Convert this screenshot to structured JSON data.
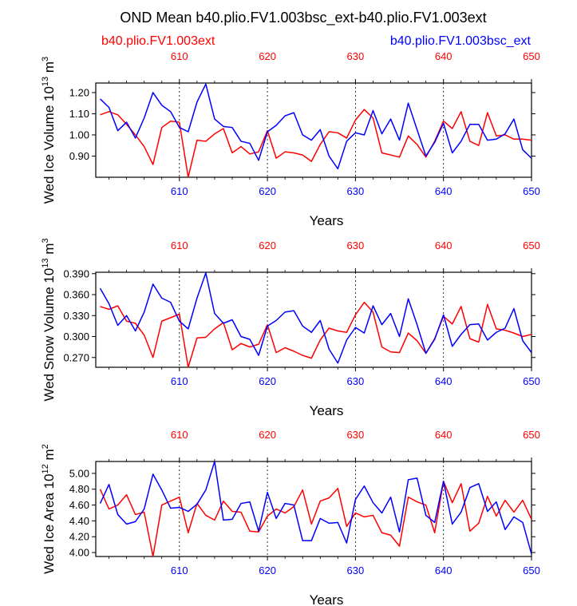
{
  "title": "OND Mean b40.plio.FV1.003bsc_ext-b40.plio.FV1.003ext",
  "legend": {
    "left": "b40.plio.FV1.003ext",
    "right": "b40.plio.FV1.003bsc_ext"
  },
  "colors": {
    "red": "#ff0000",
    "blue": "#0000ff"
  },
  "chart_data": [
    {
      "type": "line",
      "ylabel": "Wed Ice Volume 10^13 m^3",
      "ylabel_base": "Wed Ice Volume 10",
      "ylabel_exp": "13",
      "ylabel_unit": "m",
      "ylabel_unit_exp": "3",
      "xlabel": "Years",
      "xlim": [
        600.5,
        650
      ],
      "ylim": [
        0.8,
        1.245
      ],
      "yticks": [
        "0.90",
        "1.00",
        "1.10",
        "1.20"
      ],
      "xticks": [
        "610",
        "620",
        "630",
        "640",
        "650"
      ],
      "x_start": 601,
      "series": [
        {
          "name": "b40.plio.FV1.003ext",
          "color": "#ff0000",
          "values": [
            1.095,
            1.11,
            1.095,
            1.05,
            1.0,
            0.945,
            0.86,
            1.035,
            1.065,
            1.06,
            0.8,
            0.975,
            0.97,
            1.005,
            1.03,
            0.915,
            0.945,
            0.91,
            0.92,
            1.02,
            0.89,
            0.92,
            0.915,
            0.905,
            0.875,
            0.955,
            1.015,
            1.01,
            0.985,
            1.07,
            1.12,
            1.08,
            0.915,
            0.905,
            0.895,
            0.995,
            0.955,
            0.895,
            0.97,
            1.065,
            1.03,
            1.11,
            0.97,
            0.95,
            1.105,
            0.995,
            1.0,
            0.98,
            0.98,
            0.975
          ]
        },
        {
          "name": "b40.plio.FV1.003bsc_ext",
          "color": "#0000ff",
          "values": [
            1.17,
            1.13,
            1.02,
            1.06,
            0.985,
            1.08,
            1.2,
            1.14,
            1.11,
            1.035,
            1.015,
            1.155,
            1.24,
            1.075,
            1.04,
            1.035,
            0.97,
            0.96,
            0.88,
            1.015,
            1.045,
            1.09,
            1.105,
            1.0,
            0.975,
            1.025,
            0.9,
            0.84,
            0.97,
            1.01,
            1.0,
            1.115,
            1.005,
            1.075,
            0.975,
            1.15,
            1.025,
            0.9,
            0.965,
            1.055,
            0.915,
            0.97,
            1.05,
            1.05,
            0.975,
            0.98,
            1.005,
            1.075,
            0.93,
            0.89
          ]
        }
      ]
    },
    {
      "type": "line",
      "ylabel": "Wed Snow Volume 10^13 m^3",
      "ylabel_base": "Wed Snow Volume 10",
      "ylabel_exp": "13",
      "ylabel_unit": "m",
      "ylabel_unit_exp": "3",
      "xlabel": "Years",
      "xlim": [
        600.5,
        650
      ],
      "ylim": [
        0.256,
        0.392
      ],
      "yticks": [
        "0.270",
        "0.300",
        "0.330",
        "0.360",
        "0.390"
      ],
      "xticks": [
        "610",
        "620",
        "630",
        "640",
        "650"
      ],
      "x_start": 601,
      "series": [
        {
          "name": "b40.plio.FV1.003ext",
          "color": "#ff0000",
          "values": [
            0.343,
            0.339,
            0.344,
            0.322,
            0.319,
            0.302,
            0.27,
            0.322,
            0.327,
            0.332,
            0.256,
            0.298,
            0.299,
            0.311,
            0.32,
            0.281,
            0.29,
            0.285,
            0.289,
            0.317,
            0.277,
            0.284,
            0.279,
            0.273,
            0.269,
            0.295,
            0.312,
            0.308,
            0.306,
            0.331,
            0.349,
            0.335,
            0.285,
            0.278,
            0.277,
            0.305,
            0.294,
            0.276,
            0.297,
            0.329,
            0.318,
            0.343,
            0.297,
            0.292,
            0.346,
            0.311,
            0.309,
            0.305,
            0.3,
            0.303
          ]
        },
        {
          "name": "b40.plio.FV1.003bsc_ext",
          "color": "#0000ff",
          "values": [
            0.369,
            0.347,
            0.316,
            0.33,
            0.308,
            0.335,
            0.375,
            0.355,
            0.349,
            0.322,
            0.311,
            0.355,
            0.391,
            0.333,
            0.319,
            0.324,
            0.3,
            0.296,
            0.273,
            0.315,
            0.323,
            0.335,
            0.337,
            0.315,
            0.306,
            0.323,
            0.282,
            0.262,
            0.295,
            0.313,
            0.305,
            0.344,
            0.317,
            0.333,
            0.3,
            0.354,
            0.317,
            0.276,
            0.296,
            0.331,
            0.286,
            0.303,
            0.317,
            0.318,
            0.295,
            0.306,
            0.312,
            0.34,
            0.294,
            0.277
          ]
        }
      ]
    },
    {
      "type": "line",
      "ylabel": "Wed Ice Area 10^12 m^2",
      "ylabel_base": "Wed Ice Area 10",
      "ylabel_exp": "12",
      "ylabel_unit": "m",
      "ylabel_unit_exp": "2",
      "xlabel": "Years",
      "xlim": [
        600.5,
        650
      ],
      "ylim": [
        3.95,
        5.15
      ],
      "yticks": [
        "4.00",
        "4.20",
        "4.40",
        "4.60",
        "4.80",
        "5.00"
      ],
      "xticks": [
        "610",
        "620",
        "630",
        "640",
        "650"
      ],
      "x_start": 601,
      "series": [
        {
          "name": "b40.plio.FV1.003ext",
          "color": "#ff0000",
          "values": [
            4.8,
            4.55,
            4.6,
            4.73,
            4.48,
            4.51,
            3.95,
            4.6,
            4.65,
            4.7,
            4.25,
            4.62,
            4.47,
            4.41,
            4.65,
            4.52,
            4.51,
            4.27,
            4.26,
            4.46,
            4.55,
            4.5,
            4.58,
            4.79,
            4.36,
            4.65,
            4.69,
            4.81,
            4.33,
            4.5,
            4.45,
            4.47,
            4.25,
            4.22,
            4.08,
            4.7,
            4.64,
            4.6,
            4.25,
            4.9,
            4.63,
            4.87,
            4.27,
            4.37,
            4.71,
            4.46,
            4.66,
            4.51,
            4.66,
            4.42
          ]
        },
        {
          "name": "b40.plio.FV1.003bsc_ext",
          "color": "#0000ff",
          "values": [
            4.62,
            4.86,
            4.48,
            4.36,
            4.39,
            4.55,
            4.99,
            4.79,
            4.56,
            4.57,
            4.52,
            4.61,
            4.79,
            5.15,
            4.41,
            4.42,
            4.62,
            4.64,
            4.27,
            4.76,
            4.43,
            4.62,
            4.6,
            4.15,
            4.15,
            4.43,
            4.37,
            4.38,
            4.12,
            4.67,
            4.84,
            4.63,
            4.5,
            4.7,
            4.26,
            4.92,
            4.94,
            4.47,
            4.38,
            4.9,
            4.36,
            4.51,
            4.82,
            4.87,
            4.52,
            4.64,
            4.29,
            4.45,
            4.38,
            3.98
          ]
        }
      ]
    }
  ]
}
